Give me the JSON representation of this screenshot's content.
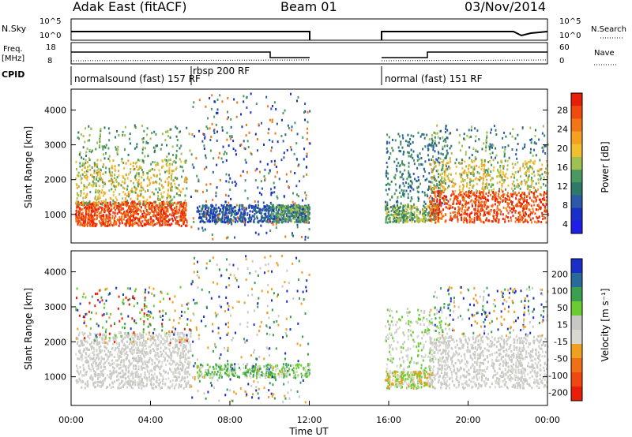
{
  "header": {
    "site": "Adak East (fitACF)",
    "beam": "Beam 01",
    "date": "03/Nov/2014"
  },
  "panel_labels": {
    "nsky": "N.Sky",
    "freq_line1": "Freq.",
    "freq_line2": "[MHz]",
    "cpid": "CPID",
    "nsearch": "N.Search",
    "nave": "Nave"
  },
  "chart_data": [
    {
      "type": "line",
      "panel": "noise",
      "y_ticks_left": [
        "10^5",
        "10^0"
      ],
      "y_ticks_right": [
        "10^5",
        "10^0"
      ],
      "series": [
        {
          "name": "N.Sky",
          "x": [
            "00:00",
            "12:00",
            "15:45",
            "22:00",
            "22:30",
            "24:00"
          ],
          "y": [
            "10^2",
            "10^2",
            "10^2",
            "10^2",
            "10^1",
            "10^2"
          ]
        }
      ]
    },
    {
      "type": "line",
      "panel": "frequency",
      "y_ticks_left": [
        "18",
        "8"
      ],
      "y_ticks_right": [
        "60",
        "0"
      ],
      "series": [
        {
          "name": "Freq.",
          "x": [
            "00:00",
            "10:00",
            "10:00",
            "12:00",
            "15:45",
            "18:15",
            "18:15",
            "24:00"
          ],
          "y": [
            13,
            13,
            11,
            11,
            11,
            11,
            13,
            13
          ]
        },
        {
          "name": "Nave",
          "x": [
            "00:00",
            "12:00",
            "15:45",
            "24:00"
          ],
          "y": [
            10,
            10,
            10,
            10
          ]
        }
      ],
      "segments": [
        {
          "start": "00:00",
          "end": "12:00"
        },
        {
          "start": "15:45",
          "end": "24:00"
        }
      ]
    },
    {
      "type": "table",
      "panel": "cpid",
      "programs": [
        {
          "label": "normalsound (fast) 157 RF",
          "start": "00:00"
        },
        {
          "label": "rbsp 200 RF",
          "start": "06:00"
        },
        {
          "label": "normal (fast) 151 RF",
          "start": "15:45"
        }
      ]
    },
    {
      "type": "heatmap",
      "panel": "power",
      "ylabel": "Slant Range [km]",
      "ylim": [
        180,
        4600
      ],
      "y_ticks": [
        "4000",
        "3000",
        "2000",
        "1000"
      ],
      "colorbar_label": "Power [dB]",
      "colorbar_ticks": [
        "28",
        "24",
        "20",
        "16",
        "12",
        "8",
        "4"
      ],
      "colorbar_colors": [
        "#e81e08",
        "#f04a0c",
        "#f27618",
        "#f5a020",
        "#f0c030",
        "#a0c050",
        "#4a9a60",
        "#2e7a6a",
        "#2a5aa8",
        "#1a2ec8",
        "#1e1ee8"
      ]
    },
    {
      "type": "heatmap",
      "panel": "velocity",
      "ylabel": "Slant Range [km]",
      "xlabel": "Time UT",
      "ylim": [
        180,
        4600
      ],
      "y_ticks": [
        "4000",
        "3000",
        "2000",
        "1000"
      ],
      "x_ticks": [
        "00:00",
        "04:00",
        "08:00",
        "12:00",
        "16:00",
        "20:00",
        "00:00"
      ],
      "colorbar_label": "Velocity [m s⁻¹]",
      "colorbar_ticks": [
        "200",
        "100",
        "50",
        "15",
        "-15",
        "-50",
        "-100",
        "-200"
      ],
      "colorbar_colors": [
        "#1a2ec8",
        "#2a6a9a",
        "#3aa050",
        "#6acc30",
        "#c8c8c4",
        "#d8d8d0",
        "#f0a020",
        "#f07018",
        "#f04810",
        "#e81e08"
      ]
    }
  ]
}
